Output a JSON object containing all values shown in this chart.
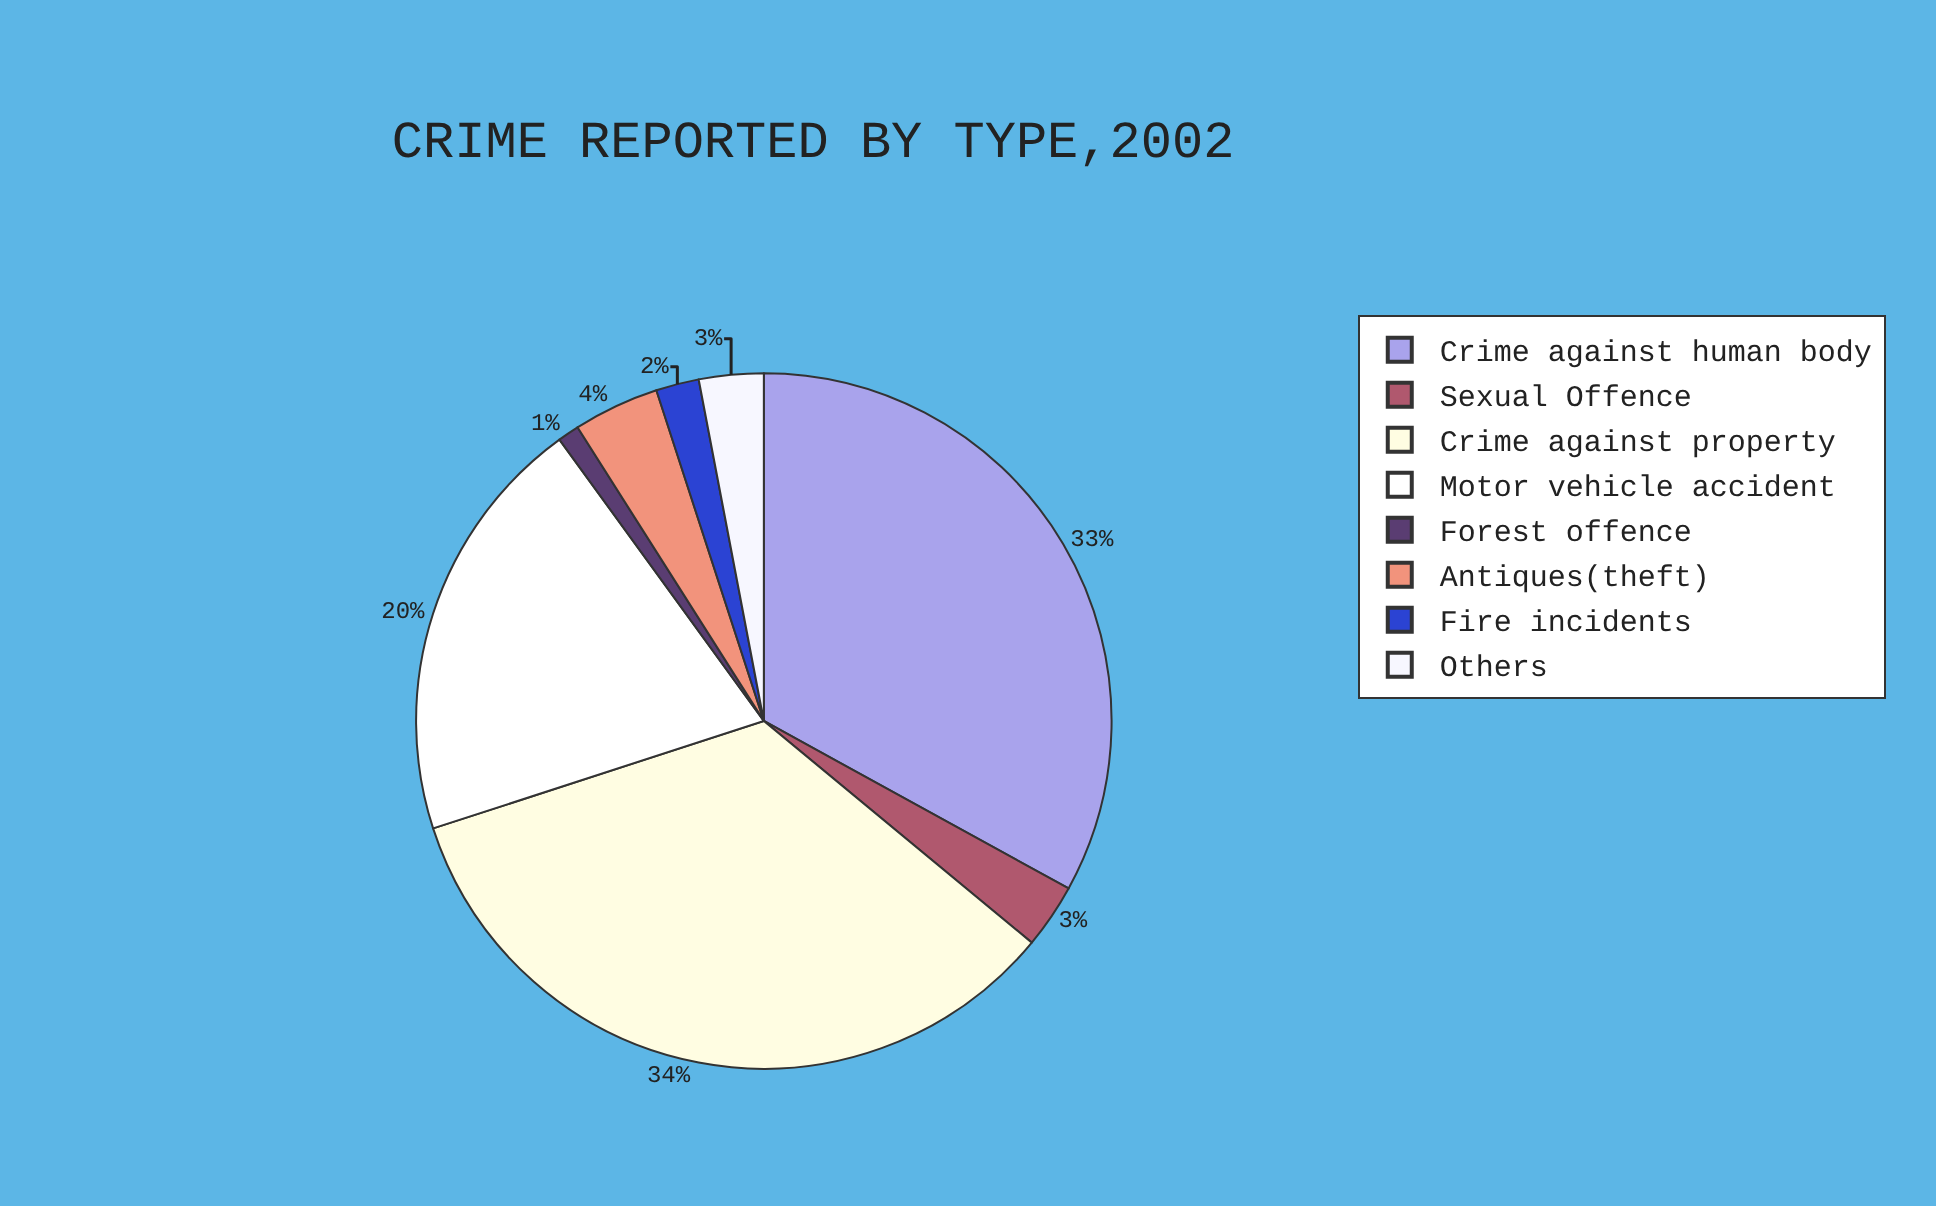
{
  "chart_data": {
    "type": "pie",
    "title": "CRIME REPORTED BY TYPE,2002",
    "categories": [
      "Crime against human body",
      "Sexual Offence",
      "Crime against property",
      "Motor vehicle accident",
      "Forest offence",
      "Antiques(theft)",
      "Fire incidents",
      "Others"
    ],
    "values": [
      33,
      3,
      34,
      20,
      1,
      4,
      2,
      3
    ],
    "value_labels": [
      "33%",
      "3%",
      "34%",
      "20%",
      "1%",
      "4%",
      "2%",
      "3%"
    ],
    "colors": [
      "#a9a3ec",
      "#b0586e",
      "#fffde2",
      "#ffffff",
      "#5a3d72",
      "#f2937c",
      "#2b43d3",
      "#f7f7ff"
    ],
    "legend": "right"
  }
}
